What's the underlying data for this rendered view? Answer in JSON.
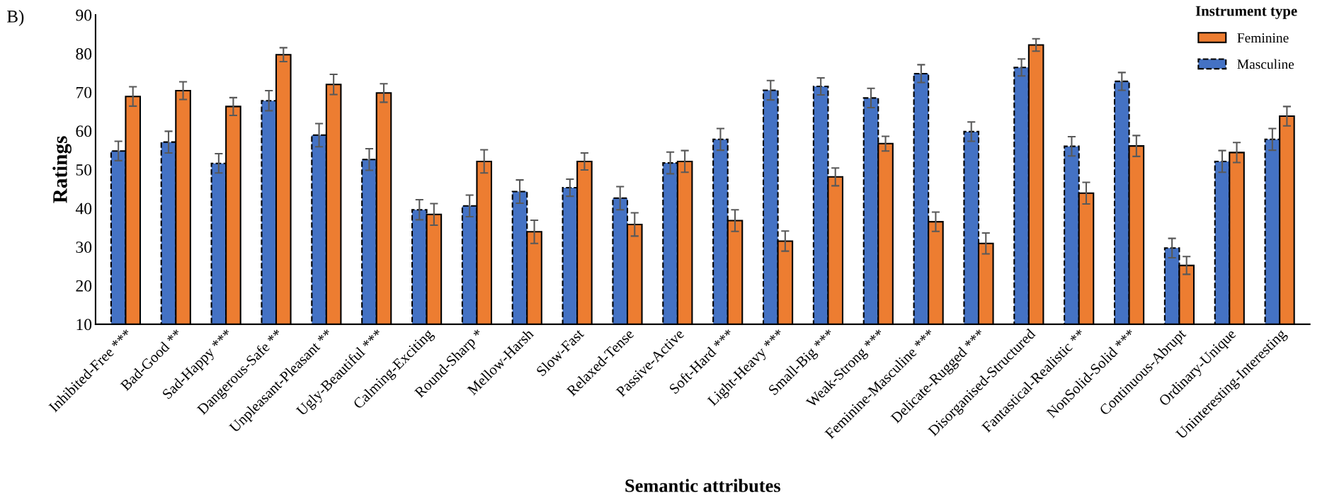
{
  "chart_data": {
    "type": "bar",
    "xlabel": "Semantic attributes",
    "ylabel": "Ratings",
    "legend_title": "Instrument type",
    "legend": "top right",
    "categories": [
      "Inhibited-Free ***",
      "Bad-Good **",
      "Sad-Happy ***",
      "Dangerous-Safe **",
      "Unpleasant-Pleasant **",
      "Ugly-Beautiful ***",
      "Calming-Exciting",
      "Round-Sharp *",
      "Mellow-Harsh",
      "Slow-Fast",
      "Relaxed-Tense",
      "Passive-Active",
      "Soft-Hard ***",
      "Light-Heavy ***",
      "Small-Big ***",
      "Weak-Strong ***",
      "Feminine-Masculine ***",
      "Delicate-Rugged ***",
      "Disorganised-Structured",
      "Fantastical-Realistic **",
      "NonSolid-Solid ***",
      "Continuous-Abrupt",
      "Ordinary-Unique",
      "Uninteresting-Interesting"
    ],
    "series": [
      {
        "name": "Masculine",
        "color": "#4472c4",
        "line_style": "dashed",
        "values": [
          54.8,
          57.1,
          51.6,
          67.8,
          58.9,
          52.6,
          39.6,
          40.6,
          44.3,
          45.3,
          42.6,
          51.7,
          57.8,
          70.5,
          71.5,
          68.5,
          74.8,
          59.8,
          76.4,
          56.0,
          72.8,
          29.7,
          52.1,
          57.8
        ],
        "errors": [
          2.5,
          2.8,
          2.5,
          2.6,
          3.0,
          2.8,
          2.6,
          2.8,
          3.0,
          2.2,
          3.0,
          2.8,
          2.8,
          2.5,
          2.2,
          2.5,
          2.3,
          2.5,
          2.2,
          2.5,
          2.3,
          2.5,
          2.8,
          2.8
        ]
      },
      {
        "name": "Feminine",
        "color": "#ed7d31",
        "line_style": "solid",
        "values": [
          68.9,
          70.4,
          66.3,
          79.7,
          72.0,
          69.8,
          38.4,
          52.1,
          33.9,
          52.1,
          35.8,
          52.1,
          36.8,
          31.5,
          48.1,
          56.7,
          36.5,
          30.9,
          82.2,
          43.9,
          56.1,
          25.2,
          54.4,
          63.8
        ],
        "errors": [
          2.5,
          2.3,
          2.3,
          1.8,
          2.6,
          2.4,
          2.8,
          3.0,
          3.0,
          2.2,
          3.0,
          2.8,
          2.8,
          2.6,
          2.3,
          1.9,
          2.5,
          2.7,
          1.6,
          2.8,
          2.7,
          2.3,
          2.6,
          2.5
        ]
      }
    ],
    "ylim": [
      10,
      90
    ],
    "yticks": [
      10,
      20,
      30,
      40,
      50,
      60,
      70,
      80,
      90
    ],
    "grid": false,
    "annotations": [
      "B)"
    ]
  }
}
